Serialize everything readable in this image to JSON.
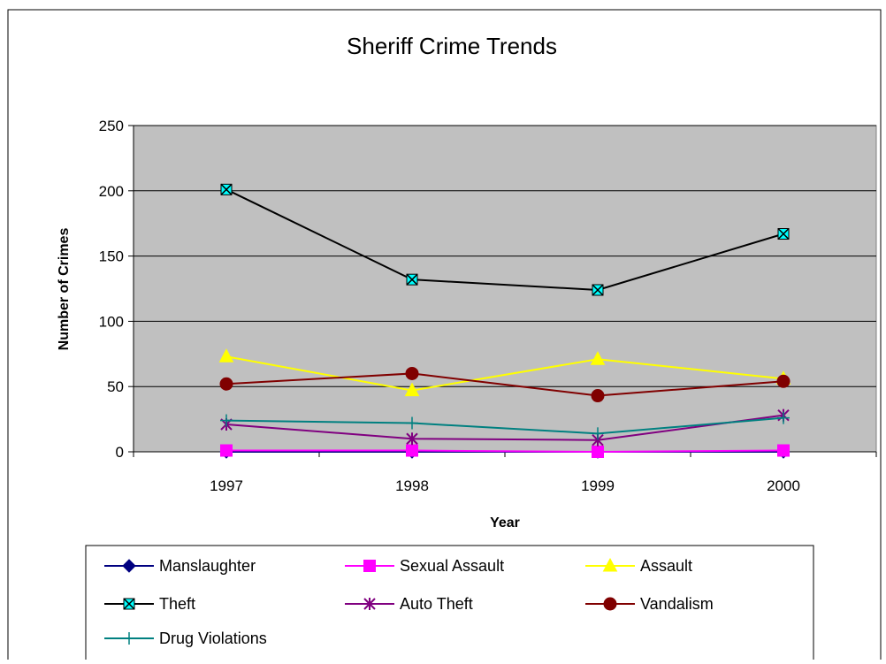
{
  "chart_data": {
    "type": "line",
    "title": "Sheriff Crime Trends",
    "xlabel": "Year",
    "ylabel": "Number of Crimes",
    "categories": [
      "1997",
      "1998",
      "1999",
      "2000"
    ],
    "ylim": [
      0,
      250
    ],
    "yticks": [
      0,
      50,
      100,
      150,
      200,
      250
    ],
    "grid": true,
    "plot_background": "#c0c0c0",
    "legend_position": "bottom",
    "series": [
      {
        "name": "Manslaughter",
        "values": [
          0,
          0,
          0,
          0
        ],
        "color": "#000080",
        "marker": "diamond"
      },
      {
        "name": "Sexual Assault",
        "values": [
          1,
          1,
          0,
          1
        ],
        "color": "#ff00ff",
        "marker": "square"
      },
      {
        "name": "Assault",
        "values": [
          73,
          47,
          71,
          56
        ],
        "color": "#ffff00",
        "marker": "triangle"
      },
      {
        "name": "Theft",
        "values": [
          201,
          132,
          124,
          167
        ],
        "color": "#000000",
        "marker": "x-box",
        "marker_fill": "#00ffff"
      },
      {
        "name": "Auto Theft",
        "values": [
          21,
          10,
          9,
          28
        ],
        "color": "#800080",
        "marker": "star"
      },
      {
        "name": "Vandalism",
        "values": [
          52,
          60,
          43,
          54
        ],
        "color": "#800000",
        "marker": "circle"
      },
      {
        "name": "Drug Violations",
        "values": [
          24,
          22,
          14,
          26
        ],
        "color": "#008080",
        "marker": "plus"
      }
    ]
  }
}
